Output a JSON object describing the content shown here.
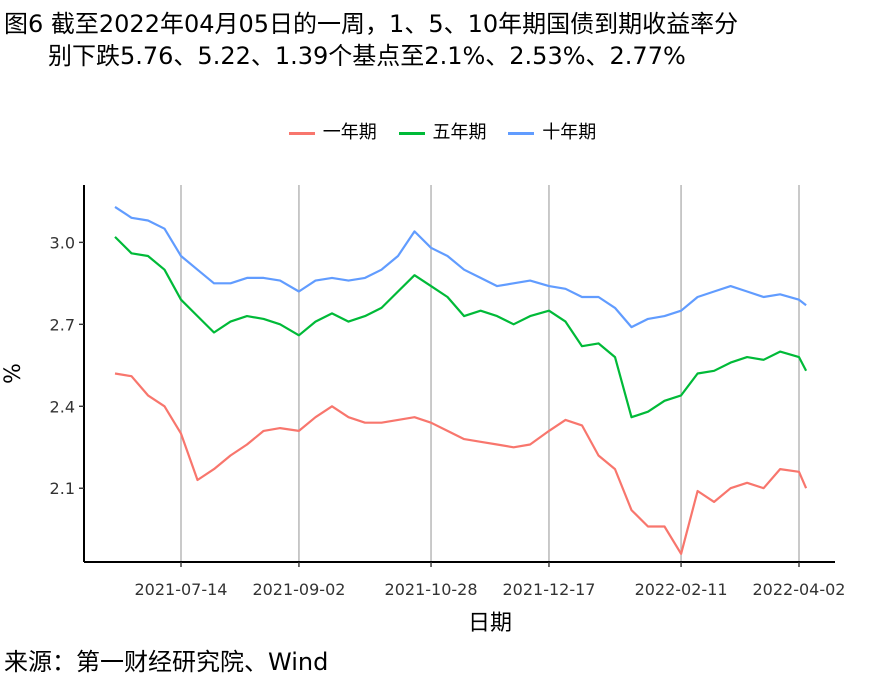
{
  "title": {
    "line1": "图6 截至2022年04月05日的一周，1、5、10年期国债到期收益率分",
    "line2": "别下跌5.76、5.22、1.39个基点至2.1%、2.53%、2.77%"
  },
  "source": "来源：第一财经研究院、Wind",
  "chart_data": {
    "type": "line",
    "xlabel": "日期",
    "ylabel": "%",
    "ylim": [
      1.83,
      3.21
    ],
    "yticks": [
      "2.1",
      "2.4",
      "2.7",
      "3.0"
    ],
    "ytick_values": [
      2.1,
      2.4,
      2.7,
      3.0
    ],
    "xticks": [
      "2021-07-14",
      "2021-09-02",
      "2021-10-28",
      "2021-12-17",
      "2022-02-11",
      "2022-04-02"
    ],
    "grid": "vertical",
    "legend_position": "top",
    "x": [
      "2021-06-16",
      "2021-06-23",
      "2021-06-30",
      "2021-07-07",
      "2021-07-14",
      "2021-07-21",
      "2021-07-28",
      "2021-08-04",
      "2021-08-11",
      "2021-08-18",
      "2021-08-25",
      "2021-09-02",
      "2021-09-09",
      "2021-09-16",
      "2021-09-23",
      "2021-09-30",
      "2021-10-07",
      "2021-10-14",
      "2021-10-21",
      "2021-10-28",
      "2021-11-04",
      "2021-11-11",
      "2021-11-18",
      "2021-11-25",
      "2021-12-02",
      "2021-12-09",
      "2021-12-17",
      "2021-12-24",
      "2021-12-31",
      "2022-01-07",
      "2022-01-14",
      "2022-01-21",
      "2022-01-28",
      "2022-02-04",
      "2022-02-11",
      "2022-02-18",
      "2022-02-25",
      "2022-03-04",
      "2022-03-11",
      "2022-03-18",
      "2022-03-25",
      "2022-04-02",
      "2022-04-05"
    ],
    "series": [
      {
        "name": "一年期",
        "color": "#F8766D",
        "values": [
          2.52,
          2.51,
          2.44,
          2.4,
          2.3,
          2.13,
          2.17,
          2.22,
          2.26,
          2.31,
          2.32,
          2.31,
          2.36,
          2.4,
          2.36,
          2.34,
          2.34,
          2.35,
          2.36,
          2.34,
          2.31,
          2.28,
          2.27,
          2.26,
          2.25,
          2.26,
          2.31,
          2.35,
          2.33,
          2.22,
          2.17,
          2.02,
          1.96,
          1.96,
          1.86,
          2.09,
          2.05,
          2.1,
          2.12,
          2.1,
          2.17,
          2.16,
          2.1
        ]
      },
      {
        "name": "五年期",
        "color": "#00BA38",
        "values": [
          3.02,
          2.96,
          2.95,
          2.9,
          2.79,
          2.73,
          2.67,
          2.71,
          2.73,
          2.72,
          2.7,
          2.66,
          2.71,
          2.74,
          2.71,
          2.73,
          2.76,
          2.82,
          2.88,
          2.84,
          2.8,
          2.73,
          2.75,
          2.73,
          2.7,
          2.73,
          2.75,
          2.71,
          2.62,
          2.63,
          2.58,
          2.36,
          2.38,
          2.42,
          2.44,
          2.52,
          2.53,
          2.56,
          2.58,
          2.57,
          2.6,
          2.58,
          2.53
        ]
      },
      {
        "name": "十年期",
        "color": "#619CFF",
        "values": [
          3.13,
          3.09,
          3.08,
          3.05,
          2.95,
          2.9,
          2.85,
          2.85,
          2.87,
          2.87,
          2.86,
          2.82,
          2.86,
          2.87,
          2.86,
          2.87,
          2.9,
          2.95,
          3.04,
          2.98,
          2.95,
          2.9,
          2.87,
          2.84,
          2.85,
          2.86,
          2.84,
          2.83,
          2.8,
          2.8,
          2.76,
          2.69,
          2.72,
          2.73,
          2.75,
          2.8,
          2.82,
          2.84,
          2.82,
          2.8,
          2.81,
          2.79,
          2.77
        ]
      }
    ]
  }
}
